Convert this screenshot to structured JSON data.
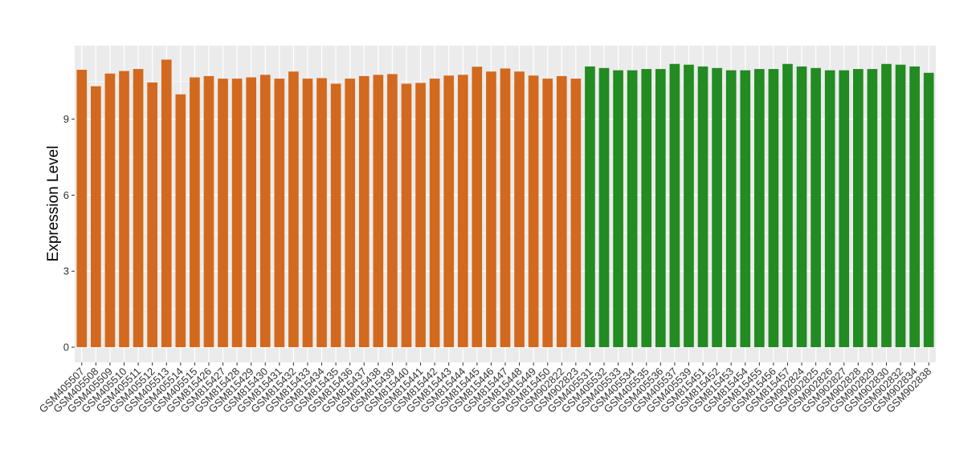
{
  "chart_data": {
    "type": "bar",
    "title": "",
    "xlabel": "",
    "ylabel": "Expression Level",
    "ylim": [
      -0.6,
      11.9
    ],
    "yticks": [
      0,
      3,
      6,
      9
    ],
    "grid": true,
    "panel_background": "#ebebeb",
    "grid_color": "#ffffff",
    "categories": [
      "GSM405507",
      "GSM405508",
      "GSM405509",
      "GSM405510",
      "GSM405511",
      "GSM405512",
      "GSM405513",
      "GSM405514",
      "GSM405515",
      "GSM815426",
      "GSM815427",
      "GSM815428",
      "GSM815429",
      "GSM815430",
      "GSM815431",
      "GSM815432",
      "GSM815433",
      "GSM815434",
      "GSM815435",
      "GSM815436",
      "GSM815437",
      "GSM815438",
      "GSM815439",
      "GSM815440",
      "GSM815441",
      "GSM815442",
      "GSM815443",
      "GSM815444",
      "GSM815445",
      "GSM815446",
      "GSM815447",
      "GSM815448",
      "GSM815449",
      "GSM815450",
      "GSM902822",
      "GSM902823",
      "GSM405531",
      "GSM405532",
      "GSM405533",
      "GSM405534",
      "GSM405535",
      "GSM405536",
      "GSM405537",
      "GSM405539",
      "GSM815451",
      "GSM815452",
      "GSM815453",
      "GSM815454",
      "GSM815455",
      "GSM815456",
      "GSM815457",
      "GSM902824",
      "GSM902825",
      "GSM902826",
      "GSM902827",
      "GSM902828",
      "GSM902829",
      "GSM902830",
      "GSM902832",
      "GSM902834",
      "GSM902838"
    ],
    "values": [
      10.95,
      10.3,
      10.8,
      10.9,
      10.98,
      10.45,
      11.35,
      9.98,
      10.65,
      10.7,
      10.6,
      10.6,
      10.65,
      10.75,
      10.6,
      10.88,
      10.6,
      10.62,
      10.4,
      10.6,
      10.7,
      10.75,
      10.78,
      10.4,
      10.43,
      10.6,
      10.72,
      10.75,
      11.07,
      10.88,
      11.0,
      10.88,
      10.72,
      10.6,
      10.7,
      10.6,
      11.08,
      11.02,
      10.93,
      10.93,
      10.98,
      10.98,
      11.18,
      11.15,
      11.08,
      11.02,
      10.93,
      10.93,
      10.98,
      10.98,
      11.18,
      11.08,
      11.02,
      10.93,
      10.93,
      10.98,
      10.98,
      11.18,
      11.15,
      11.08,
      10.83
    ],
    "group_sizes": [
      36,
      25
    ],
    "group_colors": [
      "#d2691e",
      "#228b22"
    ]
  }
}
